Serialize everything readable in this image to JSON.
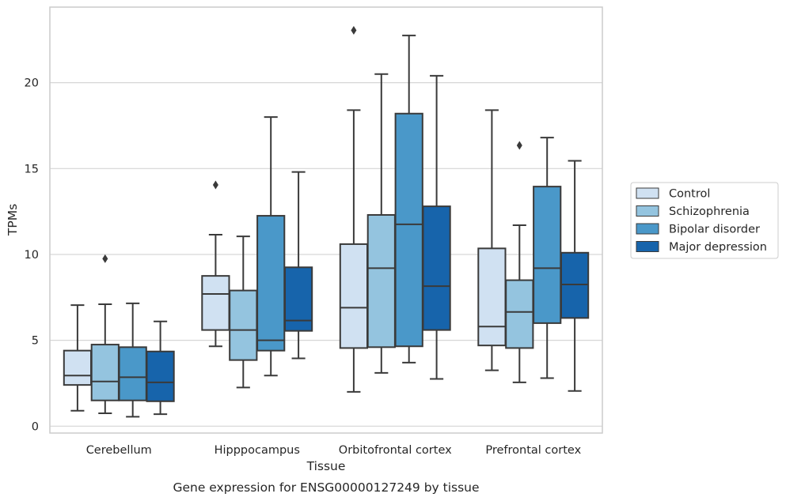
{
  "chart_data": {
    "type": "box",
    "xlabel": "Tissue",
    "ylabel": "TPMs",
    "caption": "Gene expression for ENSG00000127249 by tissue",
    "ylim": [
      -0.4,
      24.4
    ],
    "yticks": [
      0,
      5,
      10,
      15,
      20
    ],
    "grid": "horizontal",
    "legend_position": "right",
    "categories": [
      "Cerebellum",
      "Hipppocampus",
      "Orbitofrontal cortex",
      "Prefrontal cortex"
    ],
    "series": [
      {
        "name": "Control",
        "color": "#d0e1f2",
        "boxes": [
          {
            "whislo": 0.9,
            "q1": 2.4,
            "med": 2.95,
            "q3": 4.4,
            "whishi": 7.05,
            "fliers": []
          },
          {
            "whislo": 4.65,
            "q1": 5.6,
            "med": 7.7,
            "q3": 8.75,
            "whishi": 11.15,
            "fliers": [
              14.05
            ]
          },
          {
            "whislo": 2.0,
            "q1": 4.55,
            "med": 6.9,
            "q3": 10.6,
            "whishi": 18.4,
            "fliers": [
              23.05
            ]
          },
          {
            "whislo": 3.25,
            "q1": 4.7,
            "med": 5.8,
            "q3": 10.35,
            "whishi": 18.4,
            "fliers": []
          }
        ]
      },
      {
        "name": "Schizophrenia",
        "color": "#94c4df",
        "boxes": [
          {
            "whislo": 0.75,
            "q1": 1.5,
            "med": 2.6,
            "q3": 4.75,
            "whishi": 7.1,
            "fliers": [
              9.75
            ]
          },
          {
            "whislo": 2.25,
            "q1": 3.85,
            "med": 5.6,
            "q3": 7.9,
            "whishi": 11.05,
            "fliers": []
          },
          {
            "whislo": 3.1,
            "q1": 4.6,
            "med": 9.2,
            "q3": 12.3,
            "whishi": 20.5,
            "fliers": []
          },
          {
            "whislo": 2.55,
            "q1": 4.55,
            "med": 6.65,
            "q3": 8.5,
            "whishi": 11.7,
            "fliers": [
              16.35
            ]
          }
        ]
      },
      {
        "name": "Bipolar disorder",
        "color": "#4a98c9",
        "boxes": [
          {
            "whislo": 0.55,
            "q1": 1.5,
            "med": 2.85,
            "q3": 4.6,
            "whishi": 7.15,
            "fliers": []
          },
          {
            "whislo": 2.95,
            "q1": 4.4,
            "med": 5.0,
            "q3": 12.25,
            "whishi": 18.0,
            "fliers": []
          },
          {
            "whislo": 3.7,
            "q1": 4.65,
            "med": 11.75,
            "q3": 18.2,
            "whishi": 22.75,
            "fliers": []
          },
          {
            "whislo": 2.8,
            "q1": 6.0,
            "med": 9.2,
            "q3": 13.95,
            "whishi": 16.8,
            "fliers": []
          }
        ]
      },
      {
        "name": "Major depression",
        "color": "#1764ab",
        "boxes": [
          {
            "whislo": 0.7,
            "q1": 1.45,
            "med": 2.55,
            "q3": 4.35,
            "whishi": 6.1,
            "fliers": []
          },
          {
            "whislo": 3.95,
            "q1": 5.55,
            "med": 6.15,
            "q3": 9.25,
            "whishi": 14.8,
            "fliers": []
          },
          {
            "whislo": 2.75,
            "q1": 5.6,
            "med": 8.15,
            "q3": 12.8,
            "whishi": 20.4,
            "fliers": []
          },
          {
            "whislo": 2.05,
            "q1": 6.3,
            "med": 8.25,
            "q3": 10.1,
            "whishi": 15.45,
            "fliers": []
          }
        ]
      }
    ]
  }
}
